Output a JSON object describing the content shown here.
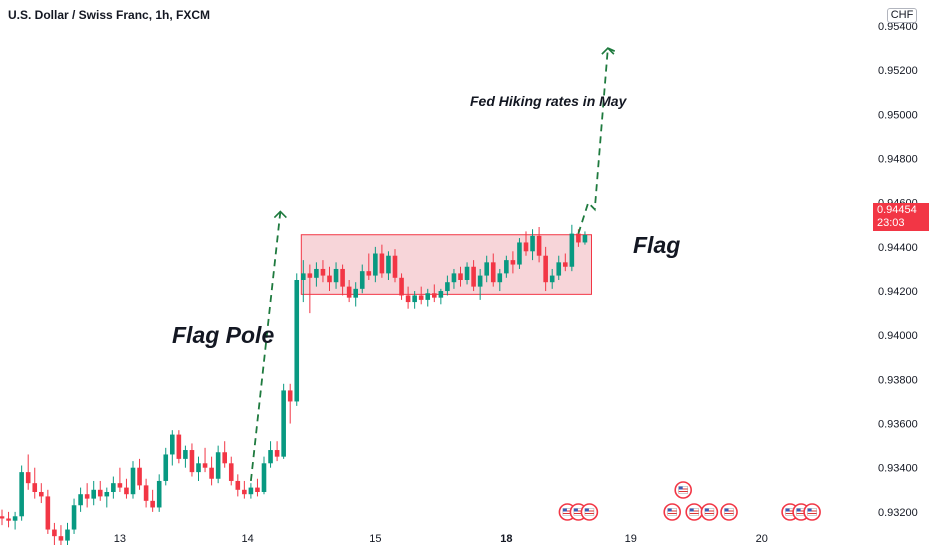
{
  "header": {
    "title": "U.S. Dollar / Swiss Franc, 1h, FXCM",
    "currency_badge": "CHF"
  },
  "price_badge": {
    "price": "0.94454",
    "countdown": "23:03"
  },
  "annotations": {
    "flag_pole": "Flag Pole",
    "flag": "Flag",
    "fed_note": "Fed Hiking rates in May"
  },
  "colors": {
    "up": "#089981",
    "down": "#f23645",
    "flag_fill": "#f4c7cc",
    "flag_border": "#f23645",
    "path_line": "#1e7a3e",
    "background": "#ffffff"
  },
  "chart_data": {
    "type": "candlestick",
    "symbol": "U.S. Dollar / Swiss Franc",
    "timeframe": "1h",
    "source": "FXCM",
    "x_tick_labels": [
      "13",
      "14",
      "15",
      "18",
      "19",
      "20"
    ],
    "y_tick_labels": [
      "0.93200",
      "0.93400",
      "0.93600",
      "0.93800",
      "0.94000",
      "0.94200",
      "0.94400",
      "0.94600",
      "0.94800",
      "0.95000",
      "0.95200",
      "0.95400"
    ],
    "ylim": [
      0.9305,
      0.9545
    ],
    "last_price": 0.94454,
    "flag_zone": {
      "from_bar": 46,
      "to_bar": 90,
      "low": 0.94185,
      "high": 0.94455
    },
    "projection_pole": [
      [
        38,
        0.9334
      ],
      [
        42.5,
        0.9456
      ]
    ],
    "projection_target": [
      [
        88,
        0.9446
      ],
      [
        89.5,
        0.946
      ],
      [
        90.5,
        0.9457
      ],
      [
        92.5,
        0.953
      ],
      [
        94,
        0.9528
      ]
    ],
    "candles": [
      [
        0.9318,
        0.9321,
        0.9314,
        0.9317
      ],
      [
        0.9317,
        0.932,
        0.9313,
        0.9316
      ],
      [
        0.9316,
        0.932,
        0.9312,
        0.9318
      ],
      [
        0.9318,
        0.9341,
        0.9316,
        0.9338
      ],
      [
        0.9338,
        0.9346,
        0.933,
        0.9333
      ],
      [
        0.9333,
        0.934,
        0.9326,
        0.9329
      ],
      [
        0.9329,
        0.9333,
        0.9324,
        0.9327
      ],
      [
        0.9327,
        0.933,
        0.931,
        0.9312
      ],
      [
        0.9312,
        0.9315,
        0.9305,
        0.9309
      ],
      [
        0.9309,
        0.9314,
        0.9305,
        0.9307
      ],
      [
        0.9307,
        0.9315,
        0.9305,
        0.9312
      ],
      [
        0.9312,
        0.9326,
        0.931,
        0.9323
      ],
      [
        0.9323,
        0.9331,
        0.932,
        0.9328
      ],
      [
        0.9328,
        0.9333,
        0.9322,
        0.9326
      ],
      [
        0.9326,
        0.9334,
        0.9323,
        0.933
      ],
      [
        0.933,
        0.9334,
        0.9325,
        0.9327
      ],
      [
        0.9327,
        0.9331,
        0.9322,
        0.9329
      ],
      [
        0.9329,
        0.9336,
        0.9326,
        0.9333
      ],
      [
        0.9333,
        0.934,
        0.9329,
        0.9331
      ],
      [
        0.9331,
        0.9335,
        0.9326,
        0.9328
      ],
      [
        0.9328,
        0.9343,
        0.9326,
        0.934
      ],
      [
        0.934,
        0.9344,
        0.933,
        0.9332
      ],
      [
        0.9332,
        0.9335,
        0.9322,
        0.9325
      ],
      [
        0.9325,
        0.933,
        0.932,
        0.9322
      ],
      [
        0.9322,
        0.9337,
        0.932,
        0.9334
      ],
      [
        0.9334,
        0.9349,
        0.9332,
        0.9346
      ],
      [
        0.9346,
        0.9357,
        0.9341,
        0.9355
      ],
      [
        0.9355,
        0.9357,
        0.9342,
        0.9344
      ],
      [
        0.9344,
        0.935,
        0.934,
        0.9348
      ],
      [
        0.9348,
        0.9351,
        0.9336,
        0.9338
      ],
      [
        0.9338,
        0.9345,
        0.9334,
        0.9342
      ],
      [
        0.9342,
        0.9349,
        0.9338,
        0.934
      ],
      [
        0.934,
        0.9345,
        0.9332,
        0.9335
      ],
      [
        0.9335,
        0.935,
        0.9333,
        0.9347
      ],
      [
        0.9347,
        0.9352,
        0.934,
        0.9342
      ],
      [
        0.9342,
        0.9345,
        0.9332,
        0.9334
      ],
      [
        0.9334,
        0.9337,
        0.9327,
        0.933
      ],
      [
        0.933,
        0.9334,
        0.9326,
        0.9328
      ],
      [
        0.9328,
        0.9333,
        0.9326,
        0.9331
      ],
      [
        0.9331,
        0.9335,
        0.9327,
        0.9329
      ],
      [
        0.9329,
        0.9345,
        0.9328,
        0.9342
      ],
      [
        0.9342,
        0.9352,
        0.934,
        0.9348
      ],
      [
        0.9348,
        0.9352,
        0.9343,
        0.9345
      ],
      [
        0.9345,
        0.9378,
        0.9344,
        0.9375
      ],
      [
        0.9375,
        0.9378,
        0.936,
        0.937
      ],
      [
        0.937,
        0.9428,
        0.9368,
        0.9425
      ],
      [
        0.9425,
        0.9434,
        0.9415,
        0.9428
      ],
      [
        0.9428,
        0.9432,
        0.941,
        0.9426
      ],
      [
        0.9426,
        0.9433,
        0.9422,
        0.943
      ],
      [
        0.943,
        0.9434,
        0.9424,
        0.9427
      ],
      [
        0.9427,
        0.9431,
        0.942,
        0.9424
      ],
      [
        0.9424,
        0.9433,
        0.9421,
        0.943
      ],
      [
        0.943,
        0.9432,
        0.9418,
        0.9422
      ],
      [
        0.9422,
        0.9425,
        0.9415,
        0.9417
      ],
      [
        0.9417,
        0.9424,
        0.9413,
        0.9421
      ],
      [
        0.9421,
        0.9432,
        0.9419,
        0.9429
      ],
      [
        0.9429,
        0.9437,
        0.9425,
        0.9427
      ],
      [
        0.9427,
        0.944,
        0.9424,
        0.9437
      ],
      [
        0.9437,
        0.9441,
        0.9426,
        0.9428
      ],
      [
        0.9428,
        0.9438,
        0.9425,
        0.9436
      ],
      [
        0.9436,
        0.9439,
        0.9424,
        0.9426
      ],
      [
        0.9426,
        0.9428,
        0.9416,
        0.9418
      ],
      [
        0.9418,
        0.9422,
        0.9412,
        0.9415
      ],
      [
        0.9415,
        0.942,
        0.9412,
        0.9418
      ],
      [
        0.9418,
        0.9422,
        0.9414,
        0.9416
      ],
      [
        0.9416,
        0.9421,
        0.9413,
        0.9419
      ],
      [
        0.9419,
        0.9423,
        0.9415,
        0.9417
      ],
      [
        0.9417,
        0.9421,
        0.9414,
        0.942
      ],
      [
        0.942,
        0.9427,
        0.9418,
        0.9424
      ],
      [
        0.9424,
        0.943,
        0.9421,
        0.9428
      ],
      [
        0.9428,
        0.9431,
        0.9422,
        0.9425
      ],
      [
        0.9425,
        0.9433,
        0.9423,
        0.9431
      ],
      [
        0.9431,
        0.9434,
        0.942,
        0.9422
      ],
      [
        0.9422,
        0.943,
        0.9416,
        0.9427
      ],
      [
        0.9427,
        0.9436,
        0.9424,
        0.9433
      ],
      [
        0.9433,
        0.9437,
        0.9422,
        0.9424
      ],
      [
        0.9424,
        0.943,
        0.942,
        0.9428
      ],
      [
        0.9428,
        0.9436,
        0.9426,
        0.9434
      ],
      [
        0.9434,
        0.9438,
        0.9428,
        0.9432
      ],
      [
        0.9432,
        0.9444,
        0.943,
        0.9442
      ],
      [
        0.9442,
        0.9447,
        0.9436,
        0.9438
      ],
      [
        0.9438,
        0.9448,
        0.9434,
        0.9445
      ],
      [
        0.9445,
        0.9449,
        0.9433,
        0.9436
      ],
      [
        0.9436,
        0.944,
        0.942,
        0.9424
      ],
      [
        0.9424,
        0.943,
        0.9421,
        0.9427
      ],
      [
        0.9427,
        0.9436,
        0.9425,
        0.9433
      ],
      [
        0.9433,
        0.9437,
        0.9429,
        0.9431
      ],
      [
        0.9431,
        0.945,
        0.9429,
        0.9446
      ],
      [
        0.9446,
        0.9448,
        0.944,
        0.9442
      ],
      [
        0.9442,
        0.9447,
        0.9441,
        0.94454
      ]
    ]
  },
  "events": {
    "groups": [
      {
        "bar": 88,
        "count": 3
      },
      {
        "bar": 104,
        "count": 3,
        "stacked": true
      },
      {
        "bar": 108,
        "count": 1
      },
      {
        "bar": 111,
        "count": 1
      },
      {
        "bar": 122,
        "count": 3
      }
    ]
  }
}
